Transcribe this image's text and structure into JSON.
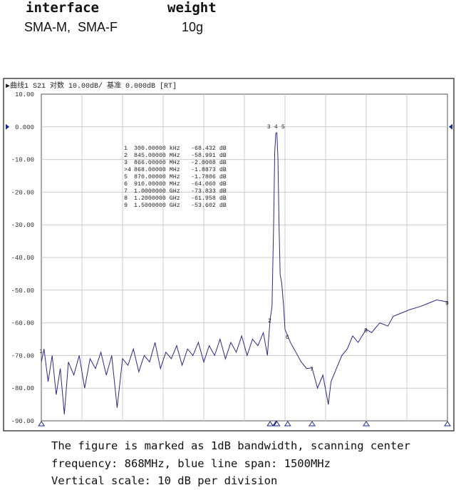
{
  "spec": {
    "interface_label": "interface",
    "weight_label": "weight",
    "interface_value": "SMA-M,  SMA-F",
    "weight_value": "10g"
  },
  "chart_data": {
    "type": "line",
    "header": "▶曲线1 S21 对数 10.00dB/ 基准 0.000dB [RT]",
    "reference_label": "0.000",
    "xlim": [
      0,
      1500
    ],
    "x_unit": "MHz",
    "ylim": [
      -90,
      10
    ],
    "yticks": [
      "10.00",
      "0.000",
      "-10.00",
      "-20.00",
      "-30.00",
      "-40.00",
      "-50.00",
      "-60.00",
      "-70.00",
      "-80.00",
      "-90.00"
    ],
    "grid": true,
    "trace_color": "#2a2a8a",
    "markers": [
      {
        "n": "1",
        "freq": "300.00000",
        "unit": "kHz",
        "value": "-68.432",
        "x": 0.3,
        "y": -68.432
      },
      {
        "n": "2",
        "freq": "845.00000",
        "unit": "MHz",
        "value": "-58.991",
        "x": 845,
        "y": -58.991
      },
      {
        "n": "3",
        "freq": "866.00000",
        "unit": "MHz",
        "value": "-2.0008",
        "x": 866,
        "y": -2.0008
      },
      {
        "n": ">4",
        "freq": "868.00000",
        "unit": "MHz",
        "value": "-1.8873",
        "x": 868,
        "y": -1.8873
      },
      {
        "n": "5",
        "freq": "870.00000",
        "unit": "MHz",
        "value": "-1.7806",
        "x": 870,
        "y": -1.7806
      },
      {
        "n": "6",
        "freq": "910.00000",
        "unit": "MHz",
        "value": "-64.060",
        "x": 910,
        "y": -64.06
      },
      {
        "n": "7",
        "freq": "1.0000000",
        "unit": "GHz",
        "value": "-73.833",
        "x": 1000,
        "y": -73.833
      },
      {
        "n": "8",
        "freq": "1.2000000",
        "unit": "GHz",
        "value": "-61.958",
        "x": 1200,
        "y": -61.958
      },
      {
        "n": "9",
        "freq": "1.5000000",
        "unit": "GHz",
        "value": "-53.602",
        "x": 1500,
        "y": -53.602
      }
    ],
    "marker_unit": "dB",
    "series": [
      {
        "x": [
          0,
          10,
          25,
          40,
          55,
          70,
          85,
          100,
          120,
          140,
          160,
          180,
          200,
          220,
          240,
          260,
          280,
          300,
          320,
          340,
          360,
          380,
          400,
          420,
          440,
          460,
          480,
          500,
          520,
          540,
          560,
          580,
          600,
          620,
          640,
          660,
          680,
          700,
          720,
          740,
          760,
          780,
          800,
          820,
          835,
          845,
          852,
          858,
          862,
          866,
          868,
          870,
          874,
          878,
          882,
          888,
          895,
          900,
          910,
          920,
          940,
          960,
          980,
          1000,
          1020,
          1040,
          1060,
          1070,
          1090,
          1110,
          1130,
          1150,
          1170,
          1200,
          1220,
          1250,
          1280,
          1300,
          1330,
          1360,
          1400,
          1430,
          1460,
          1500
        ],
        "y": [
          -72,
          -68,
          -78,
          -70,
          -82,
          -74,
          -88,
          -72,
          -76,
          -70,
          -80,
          -71,
          -74,
          -69,
          -76,
          -70,
          -86,
          -71,
          -73,
          -68,
          -75,
          -70,
          -72,
          -66,
          -74,
          -69,
          -71,
          -67,
          -73,
          -68,
          -70,
          -66,
          -72,
          -67,
          -70,
          -65,
          -71,
          -66,
          -69,
          -64,
          -70,
          -65,
          -67,
          -63,
          -70,
          -59,
          -55,
          -30,
          -8,
          -2,
          -1.9,
          -1.8,
          -10,
          -30,
          -45,
          -48,
          -55,
          -62,
          -64,
          -66,
          -69,
          -72,
          -74,
          -73.8,
          -80,
          -76,
          -85,
          -78,
          -74,
          -70,
          -68,
          -64,
          -66,
          -62,
          -63,
          -60,
          -61,
          -58,
          -57,
          -56,
          -55,
          -54,
          -53,
          -53.6
        ]
      }
    ]
  },
  "caption": {
    "line1": "The figure is marked as 1dB bandwidth, scanning center",
    "line2": "frequency: 868MHz, blue line span: 1500MHz",
    "line3": "Vertical scale: 10 dB per division"
  }
}
